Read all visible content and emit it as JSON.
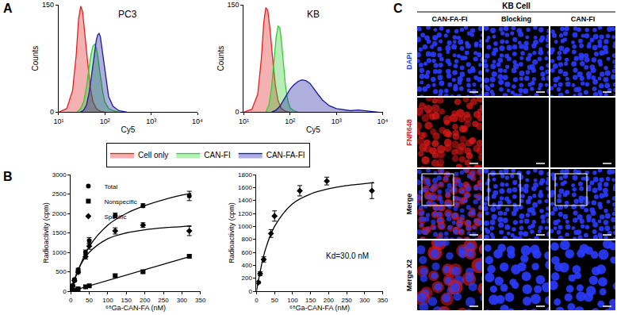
{
  "panels": [
    "A",
    "B",
    "C"
  ],
  "chart_data": [
    {
      "type": "area",
      "title": "PC3",
      "x_label": "Cy5",
      "y_label": "Counts",
      "log": "x",
      "grid": false,
      "legend": "bottom",
      "xlim": [
        10,
        10000
      ],
      "xticks": [
        {
          "value": 10,
          "label": "10¹"
        },
        {
          "value": 100,
          "label": "10²"
        },
        {
          "value": 1000,
          "label": "10³"
        },
        {
          "value": 10000,
          "label": "10⁴"
        }
      ],
      "ylim": [
        0,
        150
      ],
      "yticks": [
        0,
        150
      ],
      "series": [
        {
          "name": "Cell only",
          "color": "#e02020",
          "x": [
            10,
            15,
            20,
            24,
            27,
            30,
            33,
            37,
            42,
            48,
            55,
            65,
            80,
            100
          ],
          "values": [
            0,
            5,
            30,
            80,
            130,
            148,
            140,
            110,
            70,
            35,
            15,
            5,
            1,
            0
          ]
        },
        {
          "name": "CAN-FI",
          "color": "#33cc33",
          "x": [
            25,
            30,
            35,
            40,
            45,
            50,
            55,
            60,
            65,
            70,
            80,
            90,
            100,
            120,
            150,
            200
          ],
          "values": [
            0,
            5,
            15,
            35,
            60,
            80,
            92,
            95,
            90,
            78,
            50,
            28,
            14,
            5,
            2,
            0
          ]
        },
        {
          "name": "CAN-FA-FI",
          "color": "#1a1aa0",
          "x": [
            30,
            35,
            40,
            45,
            50,
            55,
            60,
            65,
            70,
            75,
            80,
            90,
            100,
            120,
            150,
            200,
            300
          ],
          "values": [
            0,
            3,
            10,
            25,
            45,
            65,
            85,
            100,
            108,
            110,
            105,
            80,
            55,
            22,
            8,
            2,
            0
          ]
        }
      ]
    },
    {
      "type": "area",
      "title": "KB",
      "x_label": "Cy5",
      "y_label": "Counts",
      "log": "x",
      "grid": false,
      "xlim": [
        10,
        10000
      ],
      "xticks": [
        {
          "value": 10,
          "label": "10¹"
        },
        {
          "value": 100,
          "label": "10²"
        },
        {
          "value": 1000,
          "label": "10³"
        },
        {
          "value": 10000,
          "label": "10⁴"
        }
      ],
      "ylim": [
        0,
        150
      ],
      "yticks": [
        0,
        150
      ],
      "series": [
        {
          "name": "Cell only",
          "color": "#e02020",
          "x": [
            10,
            15,
            20,
            24,
            27,
            30,
            33,
            37,
            42,
            48,
            55,
            65,
            80,
            100
          ],
          "values": [
            0,
            4,
            25,
            75,
            125,
            146,
            142,
            115,
            75,
            38,
            16,
            5,
            1,
            0
          ]
        },
        {
          "name": "CAN-FI",
          "color": "#33cc33",
          "x": [
            30,
            35,
            40,
            45,
            50,
            55,
            60,
            65,
            70,
            80,
            90,
            100,
            120,
            150
          ],
          "values": [
            0,
            10,
            35,
            70,
            105,
            120,
            118,
            100,
            75,
            35,
            15,
            6,
            2,
            0
          ]
        },
        {
          "name": "CAN-FA-FI",
          "color": "#1a1aa0",
          "x": [
            40,
            50,
            60,
            70,
            80,
            100,
            120,
            150,
            180,
            220,
            270,
            330,
            400,
            500,
            700,
            1000,
            1500,
            2000,
            3000,
            4000,
            5000,
            8000
          ],
          "values": [
            0,
            3,
            8,
            15,
            22,
            32,
            38,
            43,
            45,
            44,
            40,
            33,
            25,
            17,
            9,
            5,
            3,
            2,
            3,
            2,
            1,
            0
          ]
        }
      ]
    },
    {
      "type": "scatter",
      "x_label": "⁶⁸Ga-CAN-FA (nM)",
      "y_label": "Radioactivity (cpm)",
      "grid": false,
      "legend": "top left",
      "xlim": [
        0,
        350
      ],
      "xticks": [
        0,
        50,
        100,
        150,
        200,
        250,
        300,
        350
      ],
      "ylim": [
        0,
        3000
      ],
      "yticks": [
        0,
        500,
        1000,
        1500,
        2000,
        2500,
        3000
      ],
      "series": [
        {
          "name": "Total",
          "color": "#000000",
          "marker": "circle",
          "x": [
            2,
            5,
            10,
            20,
            40,
            50,
            120,
            195,
            320
          ],
          "values": [
            60,
            150,
            300,
            550,
            1000,
            1300,
            1950,
            2200,
            2450
          ],
          "error": [
            20,
            20,
            30,
            40,
            60,
            80,
            60,
            50,
            120
          ],
          "fit": {
            "x": [
              0,
              10,
              25,
              50,
              100,
              150,
              200,
              250,
              300,
              325
            ],
            "values": [
              0,
              280,
              650,
              1150,
              1700,
              2000,
              2200,
              2350,
              2470,
              2520
            ]
          }
        },
        {
          "name": "Nonspecific",
          "color": "#000000",
          "marker": "square",
          "x": [
            2,
            5,
            10,
            20,
            40,
            50,
            120,
            195,
            320
          ],
          "values": [
            5,
            15,
            30,
            60,
            110,
            140,
            400,
            500,
            900
          ],
          "error": [
            5,
            5,
            10,
            10,
            20,
            20,
            40,
            30,
            40
          ],
          "fit": {
            "x": [
              0,
              325
            ],
            "values": [
              0,
              900
            ]
          }
        },
        {
          "name": "Specific",
          "color": "#000000",
          "marker": "diamond",
          "x": [
            5,
            10,
            20,
            40,
            50,
            120,
            195,
            320
          ],
          "values": [
            135,
            270,
            490,
            890,
            1160,
            1550,
            1700,
            1550
          ],
          "error": [
            20,
            30,
            40,
            60,
            80,
            80,
            60,
            120
          ],
          "fit": {
            "x": [
              0,
              10,
              25,
              50,
              100,
              150,
              200,
              250,
              300,
              325
            ],
            "values": [
              0,
              300,
              650,
              1000,
              1350,
              1500,
              1580,
              1630,
              1660,
              1680
            ]
          }
        }
      ]
    },
    {
      "type": "scatter",
      "x_label": "⁶⁸Ga-CAN-FA (nM)",
      "y_label": "Radioactivity (cpm)",
      "grid": false,
      "annotations": [
        "Kd=30.0 nM"
      ],
      "xlim": [
        0,
        350
      ],
      "xticks": [
        0,
        50,
        100,
        150,
        200,
        250,
        300,
        350
      ],
      "ylim": [
        0,
        1800
      ],
      "yticks": [
        0,
        200,
        400,
        600,
        800,
        1000,
        1200,
        1400,
        1600,
        1800
      ],
      "series": [
        {
          "color": "#000000",
          "marker": "diamond",
          "x": [
            5,
            10,
            20,
            40,
            50,
            120,
            195,
            320
          ],
          "values": [
            135,
            270,
            490,
            890,
            1160,
            1550,
            1700,
            1550
          ],
          "error": [
            20,
            30,
            40,
            60,
            80,
            80,
            60,
            120
          ],
          "fit": {
            "x": [
              0,
              10,
              25,
              50,
              100,
              150,
              200,
              250,
              300,
              325
            ],
            "values": [
              0,
              300,
              650,
              1000,
              1350,
              1500,
              1580,
              1630,
              1660,
              1680
            ]
          }
        }
      ]
    }
  ],
  "microscopy": {
    "title": "KB Cell",
    "columns": [
      "CAN-FA-FI",
      "Blocking",
      "CAN-FI"
    ],
    "rows": [
      "DAPI",
      "FNR648",
      "Merge",
      "Merge X2"
    ]
  }
}
